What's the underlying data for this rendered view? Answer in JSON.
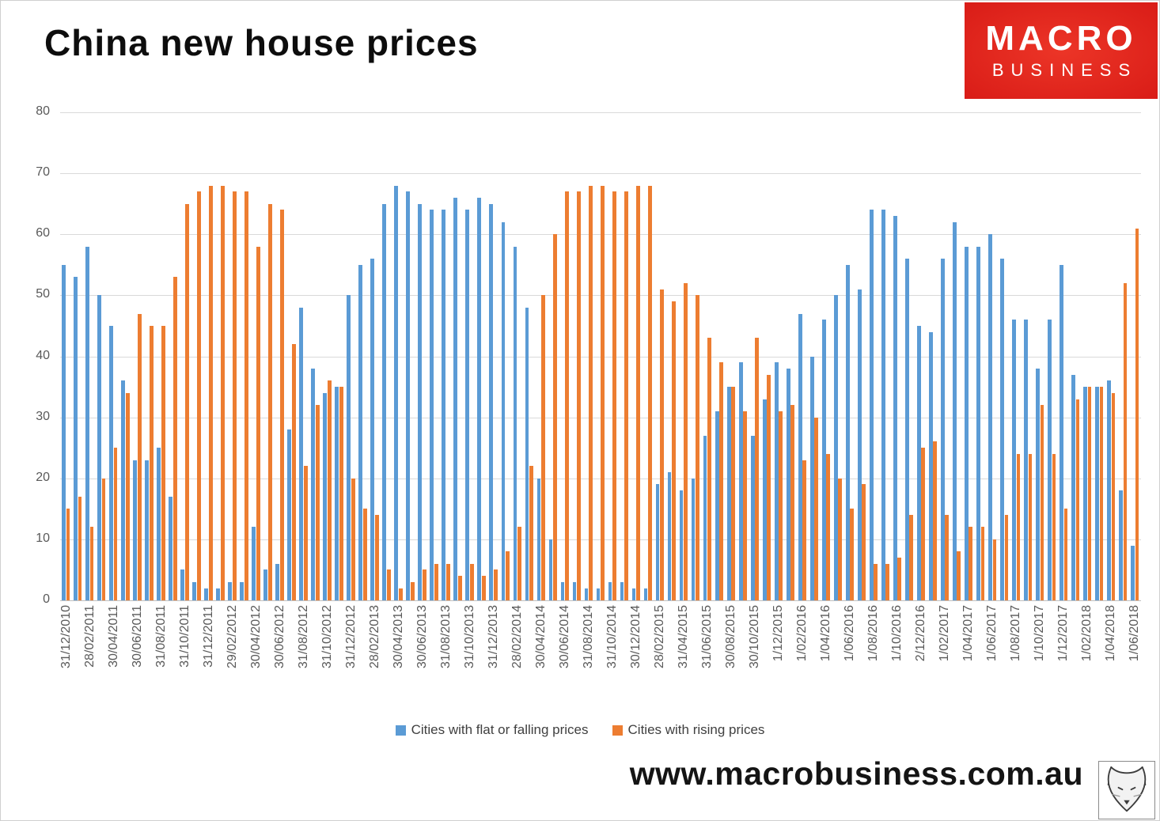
{
  "title": "China new house prices",
  "logo": {
    "line1": "MACRO",
    "line2": "BUSINESS",
    "bg_color": "#e1251b",
    "text_color": "#ffffff"
  },
  "footer": {
    "url": "www.macrobusiness.com.au"
  },
  "legend": [
    {
      "label": "Cities with flat or falling prices",
      "color": "#5B9BD5"
    },
    {
      "label": "Cities with rising prices",
      "color": "#ED7D31"
    }
  ],
  "chart_data": {
    "type": "bar",
    "title": "China new house prices",
    "xlabel": "",
    "ylabel": "",
    "ylim": [
      0,
      80
    ],
    "y_ticks": [
      0,
      10,
      20,
      30,
      40,
      50,
      60,
      70,
      80
    ],
    "grid": true,
    "legend_position": "bottom",
    "label_every": 2,
    "x_tick_labels": [
      "31/12/2010",
      "28/02/2011",
      "30/04/2011",
      "30/06/2011",
      "31/08/2011",
      "31/10/2011",
      "31/12/2011",
      "29/02/2012",
      "30/04/2012",
      "30/06/2012",
      "31/08/2012",
      "31/10/2012",
      "31/12/2012",
      "28/02/2013",
      "30/04/2013",
      "30/06/2013",
      "31/08/2013",
      "31/10/2013",
      "31/12/2013",
      "28/02/2014",
      "30/04/2014",
      "30/06/2014",
      "31/08/2014",
      "31/10/2014",
      "30/12/2014",
      "28/02/2015",
      "31/04/2015",
      "31/06/2015",
      "30/08/2015",
      "30/10/2015",
      "1/12/2015",
      "1/02/2016",
      "1/04/2016",
      "1/06/2016",
      "1/08/2016",
      "1/10/2016",
      "2/12/2016",
      "1/02/2017",
      "1/04/2017",
      "1/06/2017",
      "1/08/2017",
      "1/10/2017",
      "1/12/2017",
      "1/02/2018",
      "1/04/2018",
      "1/06/2018"
    ],
    "series": [
      {
        "name": "Cities with flat or falling prices",
        "color": "#5B9BD5",
        "values": [
          55,
          53,
          58,
          50,
          45,
          36,
          23,
          23,
          25,
          17,
          5,
          3,
          2,
          2,
          3,
          3,
          12,
          5,
          6,
          28,
          48,
          38,
          34,
          35,
          50,
          55,
          56,
          65,
          68,
          67,
          65,
          64,
          64,
          66,
          64,
          66,
          65,
          62,
          58,
          48,
          20,
          10,
          3,
          3,
          2,
          2,
          3,
          3,
          2,
          2,
          19,
          21,
          18,
          20,
          27,
          31,
          35,
          39,
          27,
          33,
          39,
          38,
          47,
          40,
          46,
          50,
          55,
          51,
          64,
          64,
          63,
          56,
          45,
          44,
          56,
          62,
          58,
          58,
          60,
          56,
          46,
          46,
          38,
          46,
          55,
          37,
          35,
          35,
          36,
          18,
          9
        ]
      },
      {
        "name": "Cities with rising prices",
        "color": "#ED7D31",
        "values": [
          15,
          17,
          12,
          20,
          25,
          34,
          47,
          45,
          45,
          53,
          65,
          67,
          68,
          68,
          67,
          67,
          58,
          65,
          64,
          42,
          22,
          32,
          36,
          35,
          20,
          15,
          14,
          5,
          2,
          3,
          5,
          6,
          6,
          4,
          6,
          4,
          5,
          8,
          12,
          22,
          50,
          60,
          67,
          67,
          68,
          68,
          67,
          67,
          68,
          68,
          51,
          49,
          52,
          50,
          43,
          39,
          35,
          31,
          43,
          37,
          31,
          32,
          23,
          30,
          24,
          20,
          15,
          19,
          6,
          6,
          7,
          14,
          25,
          26,
          14,
          8,
          12,
          12,
          10,
          14,
          24,
          24,
          32,
          24,
          15,
          33,
          35,
          35,
          34,
          52,
          61
        ]
      }
    ]
  }
}
